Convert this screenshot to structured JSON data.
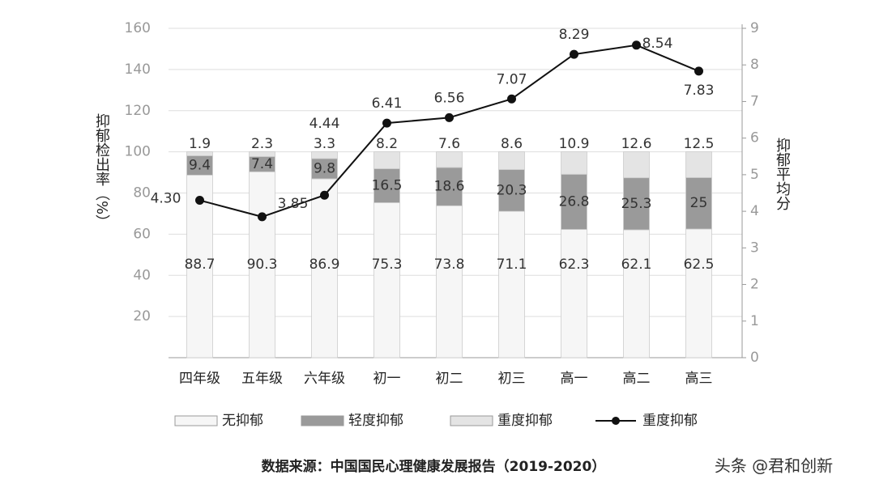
{
  "chart_data": {
    "type": "bar-line",
    "categories": [
      "四年级",
      "五年级",
      "六年级",
      "初一",
      "初二",
      "初三",
      "高一",
      "高二",
      "高三"
    ],
    "series": [
      {
        "name": "无抑郁",
        "color": "#f6f6f6",
        "values": [
          88.7,
          90.3,
          86.9,
          75.3,
          73.8,
          71.1,
          62.3,
          62.1,
          62.5
        ]
      },
      {
        "name": "轻度抑郁",
        "color": "#9a9a9a",
        "values": [
          9.4,
          7.4,
          9.8,
          16.5,
          18.6,
          20.3,
          26.8,
          25.3,
          25
        ]
      },
      {
        "name": "重度抑郁",
        "color": "#e4e4e4",
        "values": [
          1.9,
          2.3,
          3.3,
          8.2,
          7.6,
          8.6,
          10.9,
          12.6,
          12.5
        ]
      },
      {
        "name": "重度抑郁",
        "type": "line",
        "axis": "y2",
        "color": "#111111",
        "values": [
          4.3,
          3.85,
          4.44,
          6.41,
          6.56,
          7.07,
          8.29,
          8.54,
          7.83
        ],
        "value_labels": [
          "4.30",
          "3.85",
          "4.44",
          "6.41",
          "6.56",
          "7.07",
          "8.29",
          "8.54",
          "7.83"
        ]
      }
    ],
    "ylabel": "抑郁检出率（%）",
    "y2label": "抑郁平均分",
    "ylim": [
      0,
      160
    ],
    "yticks": [
      20,
      40,
      60,
      80,
      100,
      120,
      140,
      160
    ],
    "y2lim": [
      0,
      9
    ],
    "y2ticks": [
      0,
      1,
      2,
      3,
      4,
      5,
      6,
      7,
      8,
      9
    ],
    "grid": true,
    "legend": "bottom",
    "source": "数据来源：中国国民心理健康发展报告（2019-2020）",
    "watermark": "头条 @君和创新"
  }
}
